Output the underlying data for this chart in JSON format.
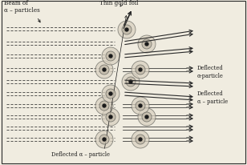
{
  "bg_color": "#f0ece0",
  "line_color": "#2a2a2a",
  "atom_fill": "#d0c8b8",
  "nucleus_color": "#1a1a1a",
  "text_color": "#1a1a1a",
  "label_beam": "Beam of\nα – particles",
  "label_foil": "Thin gold foil",
  "label_deflected_top": "Deflected\nα-particle",
  "label_deflected_mid": "Deflected\nα – particle",
  "label_deflected_bot": "Deflected α – particle",
  "figsize": [
    3.08,
    2.07
  ],
  "dpi": 100
}
